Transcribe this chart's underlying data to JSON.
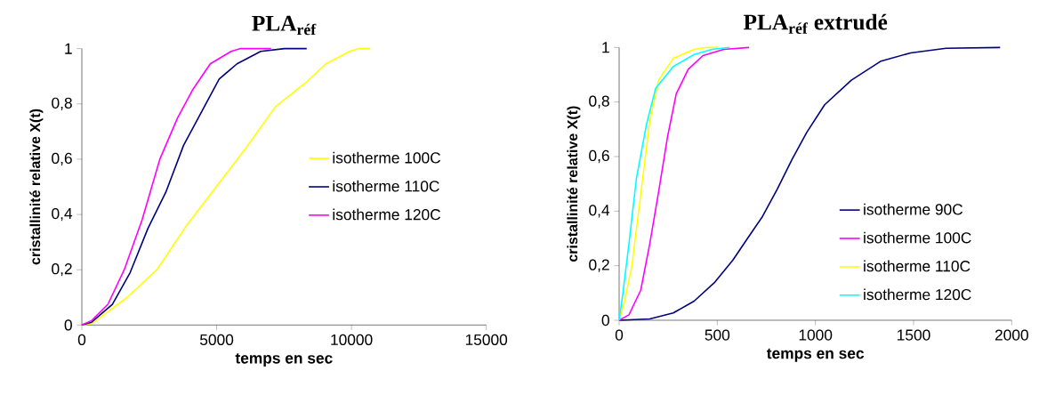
{
  "chart_data": [
    {
      "type": "line",
      "title": "PLA$_{réf}$",
      "xlabel": "temps en sec",
      "ylabel": "cristallinité relative X(t)",
      "xlim": [
        0,
        15000
      ],
      "xticks": [
        0,
        5000,
        10000,
        15000
      ],
      "ylim": [
        0,
        1
      ],
      "yticks": [
        0,
        {
          "value": 0.2,
          "label": "0,2"
        },
        {
          "value": 0.4,
          "label": "0,4"
        },
        {
          "value": 0.6,
          "label": "0,6"
        },
        {
          "value": 0.8,
          "label": "0,8"
        },
        1
      ],
      "grid": false,
      "legend": "right",
      "marker": "none",
      "line_style": "solid",
      "series": [
        {
          "name": "isotherme 100C",
          "color": "#ffff00",
          "x": [
            0,
            363,
            1683,
            2783,
            3883,
            4983,
            6083,
            7183,
            8283,
            9054,
            9934,
            10264,
            10704
          ],
          "values": [
            0,
            0.005,
            0.1,
            0.2,
            0.36,
            0.5,
            0.64,
            0.79,
            0.875,
            0.945,
            0.99,
            1,
            1
          ]
        },
        {
          "name": "isotherme 110C",
          "color": "#000080",
          "x": [
            0,
            363,
            1133,
            1793,
            2453,
            3113,
            3773,
            4433,
            5093,
            5754,
            6634,
            7514,
            8339
          ],
          "values": [
            0,
            0.01,
            0.075,
            0.19,
            0.35,
            0.48,
            0.65,
            0.77,
            0.89,
            0.945,
            0.99,
            1,
            1
          ]
        },
        {
          "name": "isotherme 120C",
          "color": "#ff00ff",
          "x": [
            0,
            363,
            968,
            1573,
            2233,
            2893,
            3553,
            4103,
            4763,
            5534,
            5864,
            7019
          ],
          "values": [
            0,
            0.016,
            0.075,
            0.2,
            0.38,
            0.6,
            0.75,
            0.85,
            0.945,
            0.99,
            1,
            1
          ]
        }
      ]
    },
    {
      "type": "line",
      "title": "PLA$_{réf}$ extrudé",
      "xlabel": "temps en sec",
      "ylabel": "cristallinité relative X(t)",
      "xlim": [
        0,
        2000
      ],
      "xticks": [
        0,
        500,
        1000,
        1500,
        2000
      ],
      "ylim": [
        0,
        1
      ],
      "yticks": [
        0,
        {
          "value": 0.2,
          "label": "0,2"
        },
        {
          "value": 0.4,
          "label": "0,4"
        },
        {
          "value": 0.6,
          "label": "0,6"
        },
        {
          "value": 0.8,
          "label": "0,8"
        },
        1
      ],
      "grid": false,
      "legend": "bottom right",
      "marker": "none",
      "line_style": "solid",
      "series": [
        {
          "name": "isotherme 90C",
          "color": "#000080",
          "x": [
            0,
            156,
            276,
            382,
            488,
            579,
            654,
            730,
            805,
            881,
            957,
            1047,
            1183,
            1334,
            1485,
            1666,
            1941
          ],
          "values": [
            0,
            0.005,
            0.027,
            0.07,
            0.14,
            0.22,
            0.3,
            0.38,
            0.48,
            0.59,
            0.69,
            0.79,
            0.88,
            0.95,
            0.98,
            0.997,
            1
          ]
        },
        {
          "name": "isotherme 100C",
          "color": "#ff00ff",
          "x": [
            0,
            50,
            110,
            156,
            201,
            246,
            291,
            352,
            427,
            533,
            662
          ],
          "values": [
            0,
            0.02,
            0.11,
            0.28,
            0.47,
            0.67,
            0.83,
            0.92,
            0.97,
            0.993,
            1
          ]
        },
        {
          "name": "isotherme 110C",
          "color": "#ffff00",
          "x": [
            0,
            27,
            65,
            110,
            156,
            201,
            276,
            382,
            443,
            503
          ],
          "values": [
            0,
            0.065,
            0.2,
            0.46,
            0.73,
            0.88,
            0.96,
            0.993,
            1,
            1
          ]
        },
        {
          "name": "isotherme 120C",
          "color": "#00ffff",
          "x": [
            0,
            17,
            50,
            88,
            140,
            186,
            276,
            382,
            473,
            563
          ],
          "values": [
            0,
            0.087,
            0.28,
            0.52,
            0.72,
            0.85,
            0.93,
            0.974,
            0.993,
            1
          ]
        }
      ]
    }
  ]
}
